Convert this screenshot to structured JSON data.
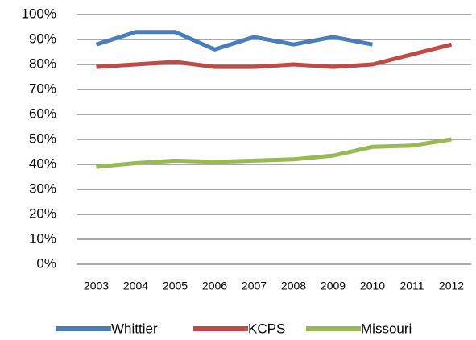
{
  "chart_data": {
    "type": "line",
    "categories": [
      "2003",
      "2004",
      "2005",
      "2006",
      "2007",
      "2008",
      "2009",
      "2010",
      "2011",
      "2012"
    ],
    "series": [
      {
        "name": "Whittier",
        "color": "#4a7ebb",
        "values": [
          88,
          93,
          93,
          86,
          91,
          88,
          91,
          88,
          null,
          null
        ]
      },
      {
        "name": "KCPS",
        "color": "#be4b48",
        "values": [
          79,
          80,
          81,
          79,
          79,
          80,
          79,
          80,
          84,
          88
        ]
      },
      {
        "name": "Missouri",
        "color": "#98b954",
        "values": [
          39,
          40.5,
          41.5,
          41,
          41.5,
          42,
          43.5,
          47,
          47.5,
          50
        ]
      }
    ],
    "ylim": [
      0,
      100
    ],
    "yticks": [
      {
        "value": 0,
        "label": "0%"
      },
      {
        "value": 10,
        "label": "10%"
      },
      {
        "value": 20,
        "label": "20%"
      },
      {
        "value": 30,
        "label": "30%"
      },
      {
        "value": 40,
        "label": "40%"
      },
      {
        "value": 50,
        "label": "50%"
      },
      {
        "value": 60,
        "label": "60%"
      },
      {
        "value": 70,
        "label": "70%"
      },
      {
        "value": 80,
        "label": "80%"
      },
      {
        "value": 90,
        "label": "90%"
      },
      {
        "value": 100,
        "label": "100%"
      }
    ],
    "grid": true,
    "legend": "bottom"
  }
}
